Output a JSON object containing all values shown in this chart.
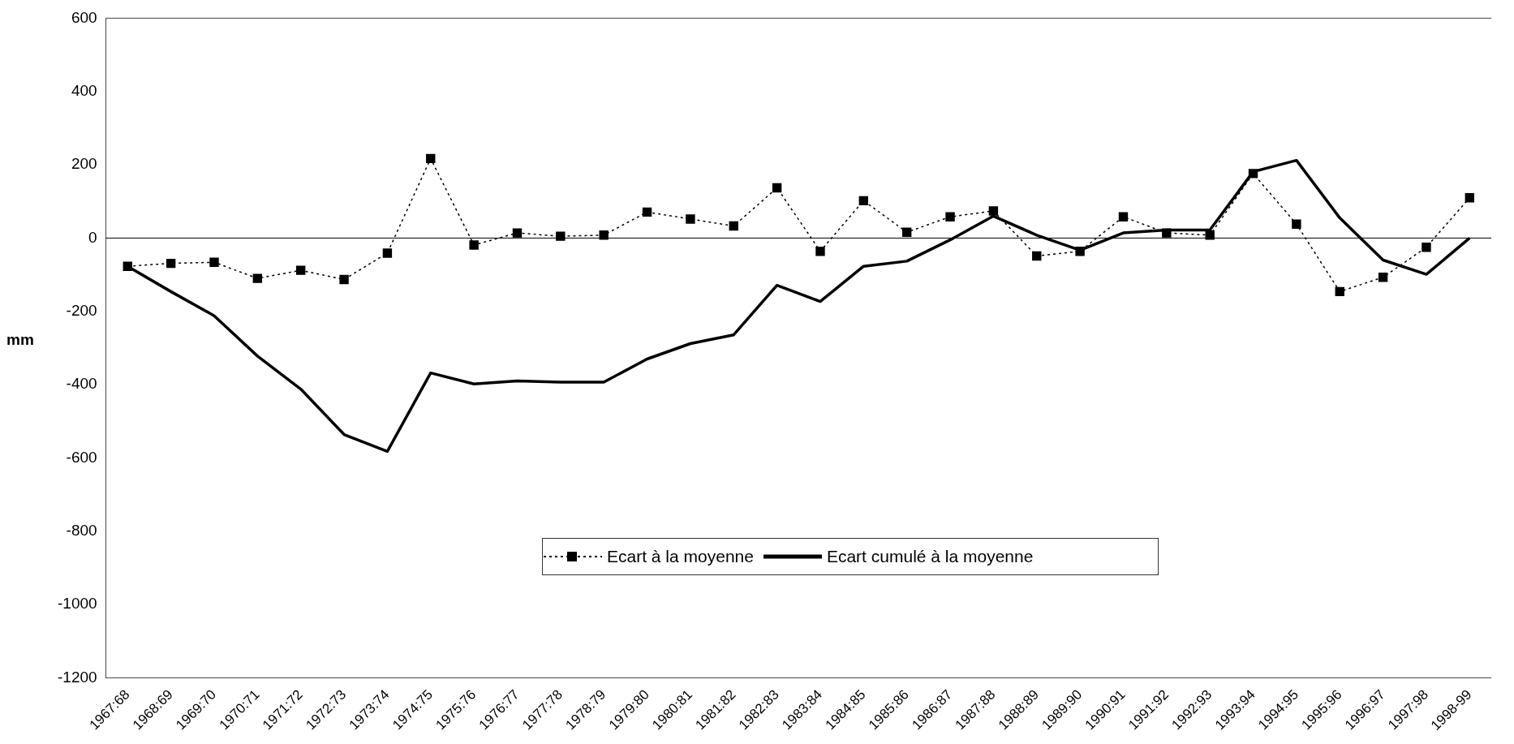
{
  "chart_data": {
    "type": "line",
    "ylabel": "mm",
    "categories": [
      "1967:68",
      "1968:69",
      "1969:70",
      "1970:71",
      "1971:72",
      "1972:73",
      "1973:74",
      "1974:75",
      "1975:76",
      "1976:77",
      "1977:78",
      "1978:79",
      "1979:80",
      "1980:81",
      "1981:82",
      "1982:83",
      "1983:84",
      "1984:85",
      "1985:86",
      "1986:87",
      "1987:88",
      "1988:89",
      "1989:90",
      "1990:91",
      "1991:92",
      "1992:93",
      "1993:94",
      "1994:95",
      "1995:96",
      "1996:97",
      "1997:98",
      "1998-99"
    ],
    "series": [
      {
        "name": "Ecart à la moyenne",
        "color": "#000000",
        "marker": "square",
        "line_style": "dotted",
        "values": [
          -77,
          -69,
          -66,
          -110,
          -88,
          -113,
          -41,
          217,
          -19,
          14,
          5,
          8,
          71,
          52,
          33,
          137,
          -36,
          102,
          16,
          58,
          74,
          -49,
          -36,
          58,
          14,
          8,
          176,
          38,
          -146,
          -107,
          -25,
          110
        ]
      },
      {
        "name": "Ecart cumulé à la moyenne",
        "color": "#000000",
        "marker": "none",
        "line_style": "solid",
        "values": [
          -77,
          -146,
          -212,
          -322,
          -412,
          -536,
          -582,
          -368,
          -398,
          -390,
          -393,
          -393,
          -330,
          -288,
          -264,
          -129,
          -173,
          -77,
          -63,
          -5,
          60,
          8,
          -33,
          14,
          22,
          22,
          181,
          212,
          55,
          -60,
          -99,
          0
        ]
      }
    ],
    "ylim": [
      -1200,
      600
    ],
    "yticks": [
      -1200,
      -1000,
      -800,
      -600,
      -400,
      -200,
      0,
      200,
      400,
      600
    ],
    "ref_lines": [
      {
        "axis": "y",
        "value": 0,
        "color": "#000000"
      }
    ],
    "grid": false,
    "legend": "bottom"
  }
}
